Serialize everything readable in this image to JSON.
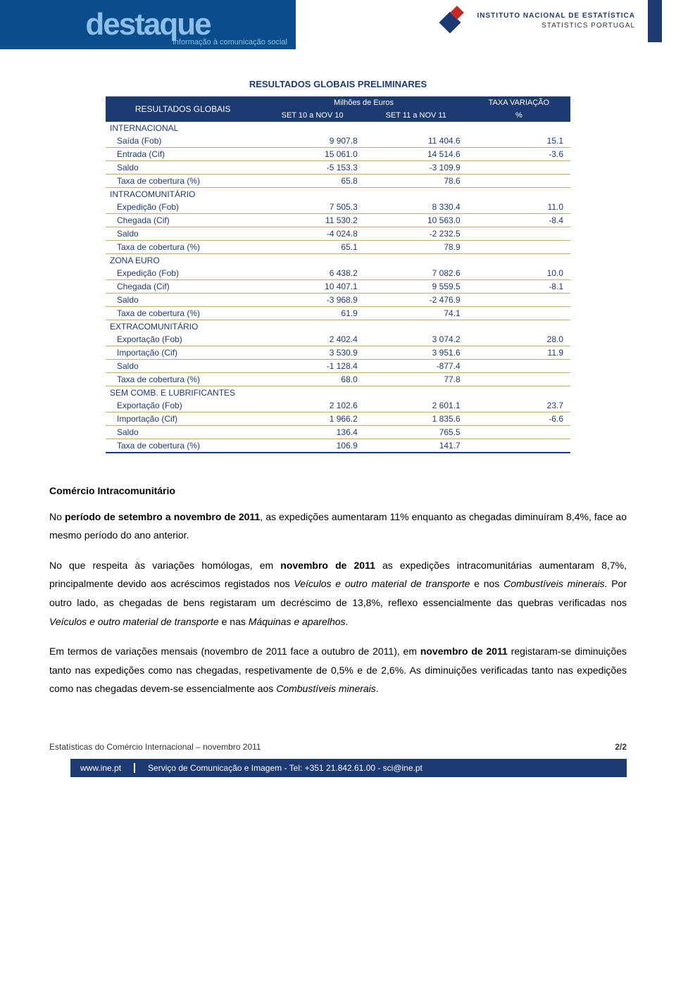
{
  "header": {
    "logo_word": "destaque",
    "logo_sub": "informação à comunicação social",
    "ine_line1": "INSTITUTO NACIONAL DE ESTATÍSTICA",
    "ine_line2": "STATISTICS PORTUGAL"
  },
  "table": {
    "title": "RESULTADOS GLOBAIS PRELIMINARES",
    "col_group_label": "RESULTADOS GLOBAIS",
    "col_millions": "Milhões de Euros",
    "col_taxa": "TAXA VARIAÇÃO",
    "col_h1": "SET 10 a NOV 10",
    "col_h2": "SET 11 a NOV 11",
    "col_h3": "%",
    "sections": [
      {
        "label": "INTERNACIONAL",
        "rows": [
          {
            "l": "Saída (Fob)",
            "a": "9 907.8",
            "b": "11 404.6",
            "c": "15.1"
          },
          {
            "l": "Entrada (Cif)",
            "a": "15 061.0",
            "b": "14 514.6",
            "c": "-3.6"
          },
          {
            "l": "Saldo",
            "a": "-5 153.3",
            "b": "-3 109.9",
            "c": ""
          },
          {
            "l": "Taxa de cobertura (%)",
            "a": "65.8",
            "b": "78.6",
            "c": ""
          }
        ]
      },
      {
        "label": "INTRACOMUNITÁRIO",
        "rows": [
          {
            "l": "Expedição (Fob)",
            "a": "7 505.3",
            "b": "8 330.4",
            "c": "11.0"
          },
          {
            "l": "Chegada (Cif)",
            "a": "11 530.2",
            "b": "10 563.0",
            "c": "-8.4"
          },
          {
            "l": "Saldo",
            "a": "-4 024.8",
            "b": "-2 232.5",
            "c": ""
          },
          {
            "l": "Taxa de cobertura (%)",
            "a": "65.1",
            "b": "78.9",
            "c": ""
          }
        ]
      },
      {
        "label": "ZONA EURO",
        "rows": [
          {
            "l": "Expedição (Fob)",
            "a": "6 438.2",
            "b": "7 082.6",
            "c": "10.0"
          },
          {
            "l": "Chegada (Cif)",
            "a": "10 407.1",
            "b": "9 559.5",
            "c": "-8.1"
          },
          {
            "l": "Saldo",
            "a": "-3 968.9",
            "b": "-2 476.9",
            "c": ""
          },
          {
            "l": "Taxa de cobertura (%)",
            "a": "61.9",
            "b": "74.1",
            "c": ""
          }
        ]
      },
      {
        "label": "EXTRACOMUNITÁRIO",
        "rows": [
          {
            "l": "Exportação (Fob)",
            "a": "2 402.4",
            "b": "3 074.2",
            "c": "28.0"
          },
          {
            "l": "Importação (Cif)",
            "a": "3 530.9",
            "b": "3 951.6",
            "c": "11.9"
          },
          {
            "l": "Saldo",
            "a": "-1 128.4",
            "b": "-877.4",
            "c": ""
          },
          {
            "l": "Taxa de cobertura (%)",
            "a": "68.0",
            "b": "77.8",
            "c": ""
          }
        ]
      },
      {
        "label": "SEM COMB. E LUBRIFICANTES",
        "rows": [
          {
            "l": "Exportação (Fob)",
            "a": "2 102.6",
            "b": "2 601.1",
            "c": "23.7"
          },
          {
            "l": "Importação (Cif)",
            "a": "1 966.2",
            "b": "1 835.6",
            "c": "-6.6"
          },
          {
            "l": "Saldo",
            "a": "136.4",
            "b": "765.5",
            "c": ""
          },
          {
            "l": "Taxa de cobertura (%)",
            "a": "106.9",
            "b": "141.7",
            "c": ""
          }
        ]
      }
    ],
    "colors": {
      "header_bg": "#1e3a73",
      "header_fg": "#ffffff",
      "row_separator": "#c9a96b",
      "text": "#1e3a73"
    }
  },
  "body": {
    "section_title": "Comércio Intracomunitário",
    "p1_a": "No ",
    "p1_b": "período de setembro a novembro de 2011",
    "p1_c": ", as expedições aumentaram 11% enquanto as chegadas diminuíram 8,4%, face ao mesmo período do ano anterior.",
    "p2_a": "No que respeita às variações homólogas, em ",
    "p2_b": "novembro de 2011",
    "p2_c": " as expedições intracomunitárias aumentaram 8,7%, principalmente devido aos acréscimos registados nos ",
    "p2_i1": "Veículos e outro material de transporte",
    "p2_d": " e nos ",
    "p2_i2": "Combustíveis minerais",
    "p2_e": ". Por outro lado, as chegadas de bens registaram um decréscimo de 13,8%, reflexo essencialmente das quebras verificadas nos ",
    "p2_i3": "Veículos e outro material de transporte",
    "p2_f": " e nas ",
    "p2_i4": "Máquinas e aparelhos",
    "p2_g": ".",
    "p3_a": "Em termos de variações mensais (novembro de 2011 face a outubro de 2011), em ",
    "p3_b": "novembro de 2011",
    "p3_c": " registaram-se diminuições tanto nas expedições como nas chegadas, respetivamente de 0,5% e de 2,6%. As diminuições verificadas tanto nas expedições como nas chegadas devem-se essencialmente aos ",
    "p3_i1": "Combustíveis minerais",
    "p3_d": "."
  },
  "footer": {
    "citation": "Estatísticas do Comércio Internacional – novembro 2011",
    "page": "2/2",
    "site": "www.ine.pt",
    "contact": "Serviço de Comunicação e Imagem - Tel: +351 21.842.61.00 - sci@ine.pt"
  }
}
